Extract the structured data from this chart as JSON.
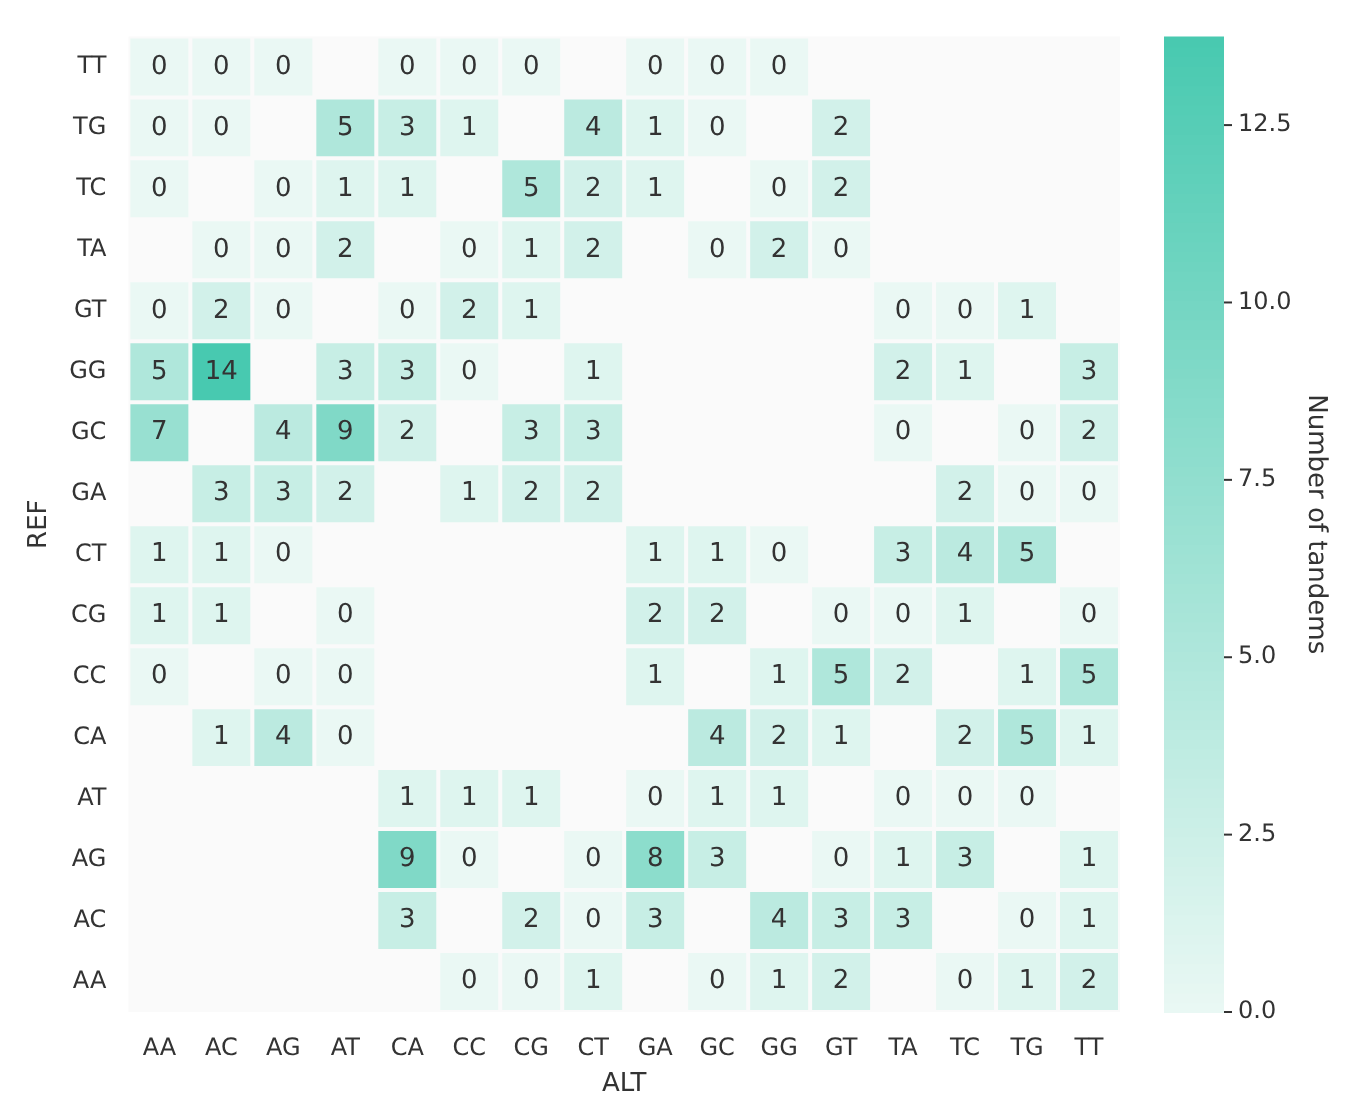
{
  "chart_data": {
    "type": "heatmap",
    "xlabel": "ALT",
    "ylabel": "REF",
    "clabel": "Number of tandems",
    "categories": [
      "AA",
      "AC",
      "AG",
      "AT",
      "CA",
      "CC",
      "CG",
      "CT",
      "GA",
      "GC",
      "GG",
      "GT",
      "TA",
      "TC",
      "TG",
      "TT"
    ],
    "y_categories": [
      "TT",
      "TG",
      "TC",
      "TA",
      "GT",
      "GG",
      "GC",
      "GA",
      "CT",
      "CG",
      "CC",
      "CA",
      "AT",
      "AG",
      "AC",
      "AA"
    ],
    "cells": [
      [
        0,
        0,
        0,
        null,
        0,
        0,
        0,
        null,
        0,
        0,
        0,
        null,
        null,
        null,
        null,
        null
      ],
      [
        0,
        0,
        null,
        5,
        3,
        1,
        null,
        4,
        1,
        0,
        null,
        2,
        null,
        null,
        null,
        null
      ],
      [
        0,
        null,
        0,
        1,
        1,
        null,
        5,
        2,
        1,
        null,
        0,
        2,
        null,
        null,
        null,
        null
      ],
      [
        null,
        0,
        0,
        2,
        null,
        0,
        1,
        2,
        null,
        0,
        2,
        0,
        null,
        null,
        null,
        null
      ],
      [
        0,
        2,
        0,
        null,
        0,
        2,
        1,
        null,
        null,
        null,
        null,
        null,
        0,
        0,
        1,
        null
      ],
      [
        5,
        14,
        null,
        3,
        3,
        0,
        null,
        1,
        null,
        null,
        null,
        null,
        2,
        1,
        null,
        3
      ],
      [
        7,
        null,
        4,
        9,
        2,
        null,
        3,
        3,
        null,
        null,
        null,
        null,
        0,
        null,
        0,
        2
      ],
      [
        null,
        3,
        3,
        2,
        null,
        1,
        2,
        2,
        null,
        null,
        null,
        null,
        null,
        2,
        0,
        0
      ],
      [
        1,
        1,
        0,
        null,
        null,
        null,
        null,
        null,
        1,
        1,
        0,
        null,
        3,
        4,
        5,
        null
      ],
      [
        1,
        1,
        null,
        0,
        null,
        null,
        null,
        null,
        2,
        2,
        null,
        0,
        0,
        1,
        null,
        0
      ],
      [
        0,
        null,
        0,
        0,
        null,
        null,
        null,
        null,
        1,
        null,
        1,
        5,
        2,
        null,
        1,
        5
      ],
      [
        null,
        1,
        4,
        0,
        null,
        null,
        null,
        null,
        null,
        4,
        2,
        1,
        null,
        2,
        5,
        1
      ],
      [
        null,
        null,
        null,
        null,
        1,
        1,
        1,
        null,
        0,
        1,
        1,
        null,
        0,
        0,
        0,
        null
      ],
      [
        null,
        null,
        null,
        null,
        9,
        0,
        null,
        0,
        8,
        3,
        null,
        0,
        1,
        3,
        null,
        1
      ],
      [
        null,
        null,
        null,
        null,
        3,
        null,
        2,
        0,
        3,
        null,
        4,
        3,
        3,
        null,
        0,
        1
      ],
      [
        null,
        null,
        null,
        null,
        null,
        0,
        0,
        1,
        null,
        0,
        1,
        2,
        null,
        0,
        1,
        2
      ]
    ],
    "clim": [
      0,
      13.75
    ],
    "cticks": [
      {
        "value": 0,
        "label": "0.0"
      },
      {
        "value": 2.5,
        "label": "2.5"
      },
      {
        "value": 5,
        "label": "5.0"
      },
      {
        "value": 7.5,
        "label": "7.5"
      },
      {
        "value": 10,
        "label": "10.0"
      },
      {
        "value": 12.5,
        "label": "12.5"
      }
    ],
    "data_labels": true,
    "colors": [
      "#eaf8f4",
      "#48c9b0"
    ]
  }
}
